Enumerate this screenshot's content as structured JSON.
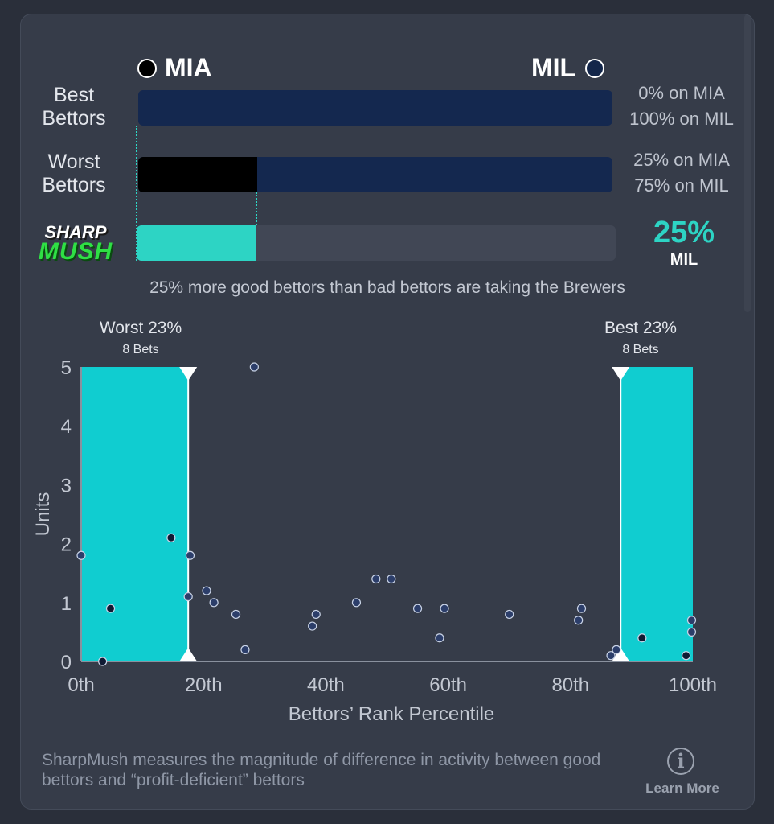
{
  "teams": {
    "left": {
      "name": "MIA",
      "color": "#000000"
    },
    "right": {
      "name": "MIL",
      "color": "#13264a"
    }
  },
  "rows": [
    {
      "label_line1": "Best",
      "label_line2": "Bettors",
      "mia_fraction": 0.0,
      "pct_mia": "0% on MIA",
      "pct_mil": "100% on MIL"
    },
    {
      "label_line1": "Worst",
      "label_line2": "Bettors",
      "mia_fraction": 0.25,
      "pct_mia": "25% on MIA",
      "pct_mil": "75% on MIL"
    }
  ],
  "sharpmush": {
    "logo_line1": "SHARP",
    "logo_line2": "MUSH",
    "fill_fraction": 0.25,
    "value": "25%",
    "team": "MIL",
    "color": "#2dd4c4"
  },
  "summary": "25% more good bettors than bad bettors are taking the Brewers",
  "chart_data": {
    "type": "scatter",
    "xlabel": "Bettors’ Rank Percentile",
    "ylabel": "Units",
    "x_ticks": [
      "0th",
      "20th",
      "40th",
      "60th",
      "80th",
      "100th"
    ],
    "y_ticks": [
      "0",
      "1",
      "2",
      "3",
      "4",
      "5"
    ],
    "xlim": [
      0,
      100
    ],
    "ylim": [
      0,
      5
    ],
    "regions": [
      {
        "title": "Worst 23%",
        "subtitle": "8 Bets",
        "x_start": 0,
        "x_end": 17.5
      },
      {
        "title": "Best 23%",
        "subtitle": "8 Bets",
        "x_start": 88.2,
        "x_end": 100
      }
    ],
    "points_dark_fill": [
      {
        "x": 4.8,
        "y": 0.9
      },
      {
        "x": 3.5,
        "y": 0.0
      },
      {
        "x": 14.7,
        "y": 2.1
      },
      {
        "x": 91.7,
        "y": 0.4
      },
      {
        "x": 98.9,
        "y": 0.1
      }
    ],
    "points_light_fill": [
      {
        "x": 0.0,
        "y": 1.8
      },
      {
        "x": 17.5,
        "y": 1.1
      },
      {
        "x": 17.8,
        "y": 1.8
      },
      {
        "x": 20.5,
        "y": 1.2
      },
      {
        "x": 21.7,
        "y": 1.0
      },
      {
        "x": 25.3,
        "y": 0.8
      },
      {
        "x": 26.8,
        "y": 0.2
      },
      {
        "x": 28.3,
        "y": 5.0
      },
      {
        "x": 37.8,
        "y": 0.6
      },
      {
        "x": 38.4,
        "y": 0.8
      },
      {
        "x": 45.0,
        "y": 1.0
      },
      {
        "x": 48.2,
        "y": 1.4
      },
      {
        "x": 50.7,
        "y": 1.4
      },
      {
        "x": 55.0,
        "y": 0.9
      },
      {
        "x": 58.6,
        "y": 0.4
      },
      {
        "x": 59.4,
        "y": 0.9
      },
      {
        "x": 70.0,
        "y": 0.8
      },
      {
        "x": 81.3,
        "y": 0.7
      },
      {
        "x": 81.8,
        "y": 0.9
      },
      {
        "x": 86.6,
        "y": 0.1
      },
      {
        "x": 87.5,
        "y": 0.2
      },
      {
        "x": 99.8,
        "y": 0.5
      },
      {
        "x": 99.8,
        "y": 0.7
      }
    ]
  },
  "footer": {
    "description": "SharpMush measures the magnitude of difference in activity between good bettors and “profit-deficient” bettors",
    "learn_more": "Learn More",
    "info_icon": "info-icon"
  }
}
